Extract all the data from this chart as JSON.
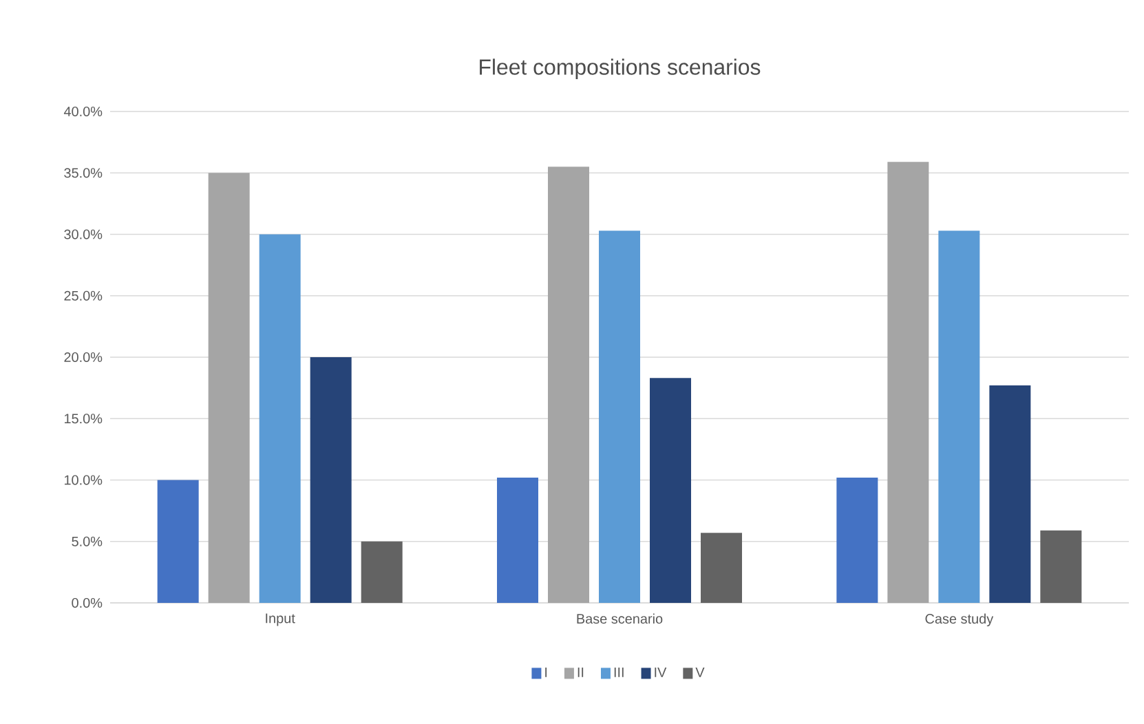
{
  "chart_data": {
    "type": "bar",
    "title": "Fleet compositions scenarios",
    "categories": [
      "Input",
      "Base scenario",
      "Case study"
    ],
    "series": [
      {
        "name": "I",
        "color": "#4472c4",
        "values": [
          10,
          10.2,
          10.2
        ]
      },
      {
        "name": "II",
        "color": "#a5a5a5",
        "values": [
          35,
          35.5,
          35.9
        ]
      },
      {
        "name": "III",
        "color": "#5b9bd5",
        "values": [
          30,
          30.3,
          30.3
        ]
      },
      {
        "name": "IV",
        "color": "#264478",
        "values": [
          20,
          18.3,
          17.7
        ]
      },
      {
        "name": "V",
        "color": "#636363",
        "values": [
          5,
          5.7,
          5.9
        ]
      }
    ],
    "ylim": [
      0,
      40
    ],
    "yticks": [
      {
        "value": 0,
        "label": "0.0%"
      },
      {
        "value": 5,
        "label": "5.0%"
      },
      {
        "value": 10,
        "label": "10.0%"
      },
      {
        "value": 15,
        "label": "15.0%"
      },
      {
        "value": 20,
        "label": "20.0%"
      },
      {
        "value": 25,
        "label": "25.0%"
      },
      {
        "value": 30,
        "label": "30.0%"
      },
      {
        "value": 35,
        "label": "35.0%"
      },
      {
        "value": 40,
        "label": "40.0%"
      }
    ],
    "grid": "y",
    "legend": "bottom"
  }
}
